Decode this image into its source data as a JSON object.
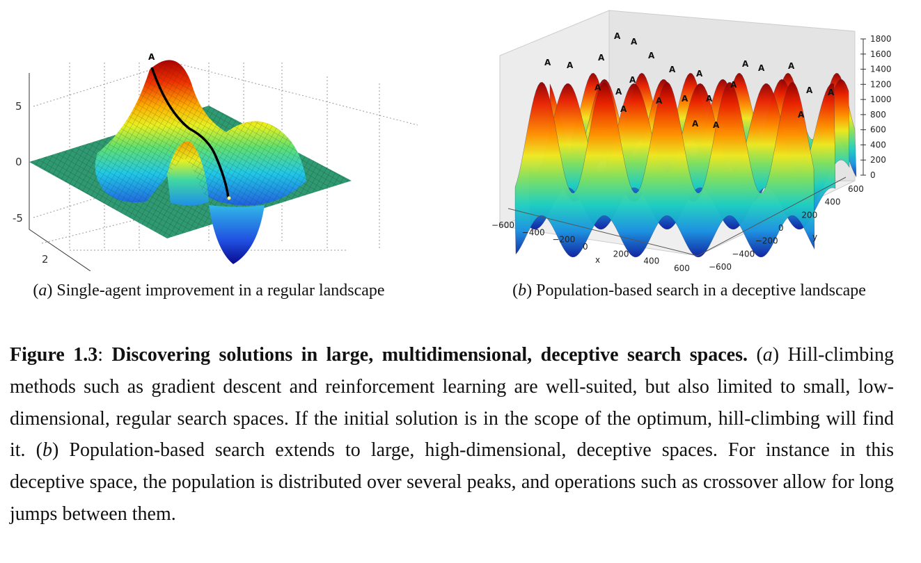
{
  "chart_data": [
    {
      "type": "surface3d",
      "title": "Single-agent improvement in a regular landscape",
      "z_ticks": [
        "5",
        "0",
        "-5"
      ],
      "y_ticks": [
        "2"
      ],
      "zlim": [
        -7,
        8
      ],
      "peak_marker": "A",
      "description_values": {
        "global_max_z": 7.5,
        "local_max_z": 3.5,
        "min_z": -6.5
      }
    },
    {
      "type": "surface3d",
      "title": "Population-based search in a deceptive landscape",
      "xlabel": "x",
      "ylabel": "y",
      "x_ticks": [
        "−600",
        "−400",
        "−200",
        "0",
        "200",
        "400",
        "600"
      ],
      "y_ticks": [
        "−600",
        "−400",
        "−200",
        "0",
        "200",
        "400",
        "600"
      ],
      "z_ticks": [
        "0",
        "200",
        "400",
        "600",
        "800",
        "1000",
        "1200",
        "1400",
        "1600",
        "1800"
      ],
      "zlim": [
        0,
        1800
      ],
      "peak_marker": "A"
    }
  ],
  "subcaptions": {
    "a_letter": "a",
    "a_text": " Single-agent improvement in a regular landscape",
    "b_letter": "b",
    "b_text": " Population-based search in a deceptive landscape"
  },
  "caption": {
    "label": "Figure 1.3",
    "title": "Discovering solutions in large, multidimensional, deceptive search spaces.",
    "a": "a",
    "text1": " Hill-climbing methods such as gradient descent and reinforcement learning are well-suited, but also limited to small, low-dimensional, regular search spaces. If the initial solution is in the scope of the optimum, hill-climbing will find it. ",
    "b": "b",
    "text2": " Population-based search extends to large, high-dimensional, deceptive spaces. For instance in this deceptive space, the population is distributed over several peaks, and operations such as crossover allow for long jumps between them."
  }
}
